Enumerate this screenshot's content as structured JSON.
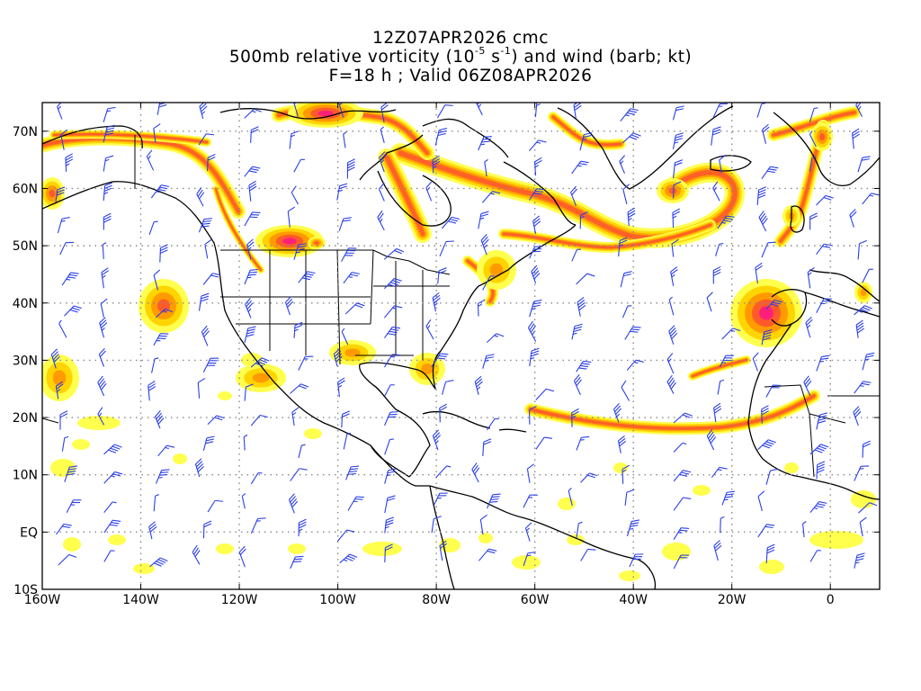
{
  "title": {
    "line1": "12Z07APR2026 cmc",
    "line2_a": "500mb relative vorticity (10",
    "line2_exp1": "-5",
    "line2_b": " s",
    "line2_exp2": "-1",
    "line2_c": ") and wind (barb; kt)",
    "line3": "F=18 h ; Valid 06Z08APR2026"
  },
  "map": {
    "lon_range": [
      -160,
      10
    ],
    "lat_range": [
      -10,
      75
    ],
    "grid": "dotted",
    "x_ticks": [
      {
        "value": -160,
        "label": "160W"
      },
      {
        "value": -140,
        "label": "140W"
      },
      {
        "value": -120,
        "label": "120W"
      },
      {
        "value": -100,
        "label": "100W"
      },
      {
        "value": -80,
        "label": "80W"
      },
      {
        "value": -60,
        "label": "60W"
      },
      {
        "value": -40,
        "label": "40W"
      },
      {
        "value": -20,
        "label": "20W"
      },
      {
        "value": 0,
        "label": "0"
      }
    ],
    "y_ticks": [
      {
        "value": 70,
        "label": "70N"
      },
      {
        "value": 60,
        "label": "60N"
      },
      {
        "value": 50,
        "label": "50N"
      },
      {
        "value": 40,
        "label": "40N"
      },
      {
        "value": 30,
        "label": "30N"
      },
      {
        "value": 20,
        "label": "20N"
      },
      {
        "value": 10,
        "label": "10N"
      },
      {
        "value": 0,
        "label": "EQ"
      },
      {
        "value": -10,
        "label": "10S"
      }
    ],
    "colors": {
      "shade_low": "#ffff4d",
      "shade_mid": "#ffd400",
      "shade_high": "#ff9a00",
      "shade_higher": "#ff5a2a",
      "shade_max": "#ff1f7a",
      "barb": "#2a3fe8",
      "coast": "#000000",
      "grid": "#888888"
    }
  }
}
